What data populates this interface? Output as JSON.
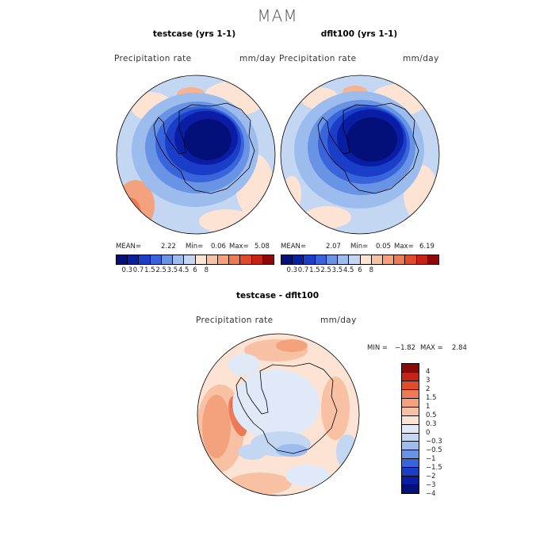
{
  "figure": {
    "title": "MAM"
  },
  "panels": [
    {
      "title": "testcase (yrs 1-1)",
      "variable": "Precipitation rate",
      "units": "mm/day",
      "stats": {
        "mean_label": "MEAN=",
        "mean": "2.22",
        "min_label": "Min=",
        "min": "0.06",
        "max_label": "Max=",
        "max": "5.08"
      }
    },
    {
      "title": "dflt100 (yrs 1-1)",
      "variable": "Precipitation rate",
      "units": "mm/day",
      "stats": {
        "mean_label": "MEAN=",
        "mean": "2.07",
        "min_label": "Min=",
        "min": "0.05",
        "max_label": "Max=",
        "max": "6.19"
      }
    },
    {
      "title": "testcase - dflt100",
      "variable": "Precipitation rate",
      "units": "mm/day",
      "stats": {
        "min_label": "MIN =",
        "min": "−1.82",
        "max_label": "MAX =",
        "max": "2.84"
      }
    }
  ],
  "colorbars": {
    "precip": {
      "colors": [
        "#04107a",
        "#0a1ea5",
        "#1a3ec8",
        "#3a64dc",
        "#6993e4",
        "#9bbcec",
        "#c3d7f2",
        "#fde3d3",
        "#f8c1a4",
        "#f4a27e",
        "#ec7a56",
        "#e24a2c",
        "#c72216",
        "#8c0a06"
      ],
      "labels": [
        "0.3",
        "0.7",
        "1.5",
        "2.5",
        "3.5",
        "4.5",
        "6",
        "8"
      ]
    },
    "difference": {
      "colors": [
        "#8c0a06",
        "#c72216",
        "#e24a2c",
        "#ec7a56",
        "#f4a27e",
        "#f8c1a4",
        "#fde3d3",
        "#dfe9f8",
        "#c3d7f2",
        "#9bbcec",
        "#6993e4",
        "#3a64dc",
        "#1a3ec8",
        "#0a1ea5",
        "#04107a"
      ],
      "labels": [
        "4",
        "3",
        "2",
        "1.5",
        "1",
        "0.5",
        "0.3",
        "0",
        "−0.3",
        "−0.5",
        "−1",
        "−1.5",
        "−2",
        "−3",
        "−4"
      ]
    }
  }
}
